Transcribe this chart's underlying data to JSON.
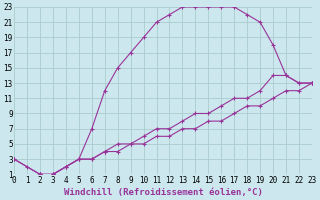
{
  "bg_color": "#cce8ee",
  "grid_color": "#aacccc",
  "line_color": "#993399",
  "xlim": [
    0,
    23
  ],
  "ylim": [
    1,
    23
  ],
  "xticks": [
    0,
    1,
    2,
    3,
    4,
    5,
    6,
    7,
    8,
    9,
    10,
    11,
    12,
    13,
    14,
    15,
    16,
    17,
    18,
    19,
    20,
    21,
    22,
    23
  ],
  "yticks": [
    1,
    3,
    5,
    7,
    9,
    11,
    13,
    15,
    17,
    19,
    21,
    23
  ],
  "xlabel": "Windchill (Refroidissement éolien,°C)",
  "curve1_x": [
    0,
    1,
    2,
    3,
    4,
    5,
    6,
    7,
    8,
    9,
    10,
    11,
    12,
    13,
    14,
    15,
    16,
    17,
    18,
    19,
    20,
    21,
    22,
    23
  ],
  "curve1_y": [
    3,
    2,
    1,
    1,
    2,
    3,
    7,
    12,
    15,
    17,
    19,
    21,
    22,
    23,
    23,
    23,
    23,
    23,
    22,
    21,
    18,
    14,
    13,
    13
  ],
  "curve2_x": [
    0,
    2,
    3,
    4,
    5,
    6,
    7,
    8,
    9,
    10,
    11,
    12,
    13,
    14,
    15,
    16,
    17,
    18,
    19,
    20,
    21,
    22,
    23
  ],
  "curve2_y": [
    3,
    1,
    1,
    2,
    3,
    3,
    4,
    5,
    5,
    6,
    7,
    7,
    8,
    9,
    9,
    10,
    11,
    11,
    12,
    14,
    14,
    13,
    13
  ],
  "curve3_x": [
    2,
    3,
    4,
    5,
    6,
    7,
    8,
    9,
    10,
    11,
    12,
    13,
    14,
    15,
    16,
    17,
    18,
    19,
    20,
    21,
    22,
    23
  ],
  "curve3_y": [
    1,
    1,
    2,
    3,
    3,
    4,
    4,
    5,
    5,
    6,
    6,
    7,
    7,
    8,
    8,
    9,
    10,
    10,
    11,
    12,
    12,
    13
  ],
  "tick_fontsize": 5.5,
  "label_fontsize": 6.5
}
